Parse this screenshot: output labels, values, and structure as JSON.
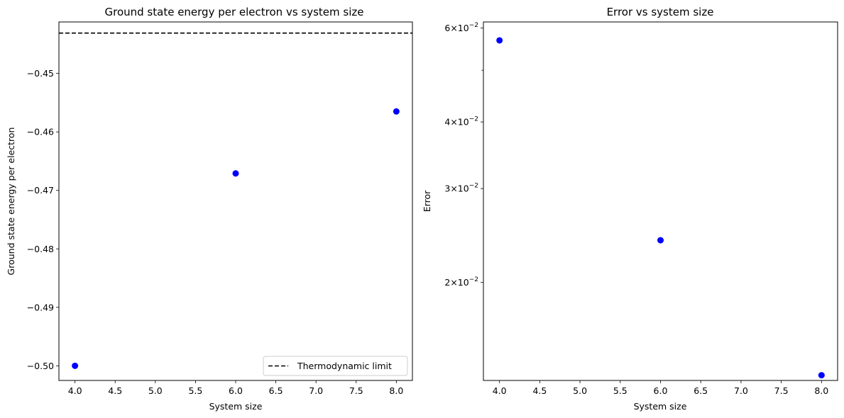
{
  "chart_data": [
    {
      "type": "scatter",
      "title": "Ground state energy per electron vs system size",
      "xlabel": "System size",
      "ylabel": "Ground state energy per electron",
      "xlim": [
        3.8,
        8.2
      ],
      "ylim": [
        -0.5025,
        -0.4412
      ],
      "xticks": [
        "4.0",
        "4.5",
        "5.0",
        "5.5",
        "6.0",
        "6.5",
        "7.0",
        "7.5",
        "8.0"
      ],
      "yticks": [
        "−0.45",
        "−0.46",
        "−0.47",
        "−0.48",
        "−0.49",
        "−0.50"
      ],
      "grid": false,
      "series": [
        {
          "x": [
            4,
            6,
            8
          ],
          "y": [
            -0.5,
            -0.4671,
            -0.4565
          ],
          "color": "#0000ff",
          "marker": "circle"
        }
      ],
      "reference_line": {
        "y": -0.4431,
        "style": "dashed",
        "color": "#000000",
        "label": "Thermodynamic limit"
      },
      "legend": {
        "position": "bottom-right",
        "entries": [
          "Thermodynamic limit"
        ]
      }
    },
    {
      "type": "scatter",
      "title": "Error vs system size",
      "xlabel": "System size",
      "ylabel": "Error",
      "xlim": [
        3.8,
        8.2
      ],
      "ylim": [
        0.0131,
        0.0616
      ],
      "yscale": "log",
      "xticks": [
        "4.0",
        "4.5",
        "5.0",
        "5.5",
        "6.0",
        "6.5",
        "7.0",
        "7.5",
        "8.0"
      ],
      "yticks": [
        {
          "value": 0.06,
          "mantissa": "6",
          "exp": "−2"
        },
        {
          "value": 0.04,
          "mantissa": "4",
          "exp": "−2"
        },
        {
          "value": 0.03,
          "mantissa": "3",
          "exp": "−2"
        },
        {
          "value": 0.02,
          "mantissa": "2",
          "exp": "−2"
        }
      ],
      "grid": false,
      "series": [
        {
          "x": [
            4,
            6,
            8
          ],
          "y": [
            0.0569,
            0.024,
            0.0134
          ],
          "color": "#0000ff",
          "marker": "circle"
        }
      ]
    }
  ]
}
